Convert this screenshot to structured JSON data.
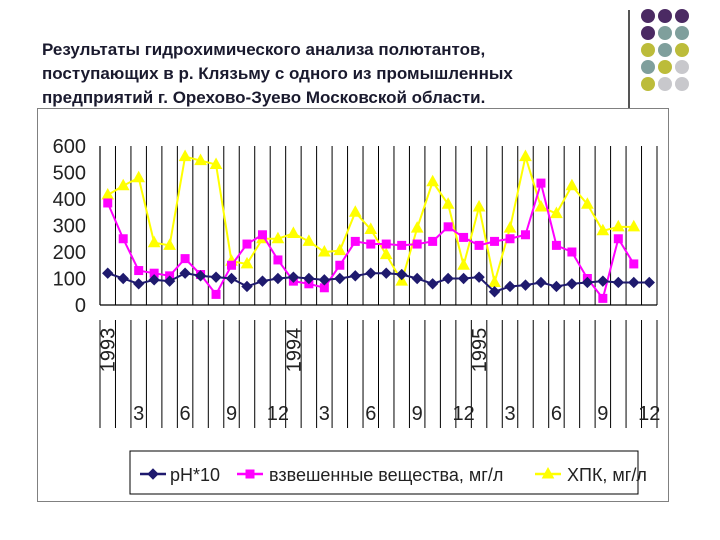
{
  "slide": {
    "title": "Результаты гидрохимического анализа полютантов,\nпоступающих в р. Клязьму с одного из промышленных\nпредприятий г. Орехово-Зуево Московской области."
  },
  "decor": {
    "dot_colors": {
      "purple": "#4b2a63",
      "teal": "#7f9f9c",
      "olive": "#bcbc3a",
      "gray": "#c8c8cc"
    }
  },
  "chart_data": {
    "type": "line",
    "ylim": [
      0,
      600
    ],
    "yticks": [
      "0",
      "100",
      "200",
      "300",
      "400",
      "500",
      "600"
    ],
    "grid": "vertical",
    "legend_position": "bottom",
    "x_count": 36,
    "year_labels": [
      {
        "label": "1993",
        "index": 0
      },
      {
        "label": "1994",
        "index": 12
      },
      {
        "label": "1995",
        "index": 24
      }
    ],
    "month_labels": [
      {
        "label": "3",
        "index": 2
      },
      {
        "label": "6",
        "index": 5
      },
      {
        "label": "9",
        "index": 8
      },
      {
        "label": "12",
        "index": 11
      },
      {
        "label": "3",
        "index": 14
      },
      {
        "label": "6",
        "index": 17
      },
      {
        "label": "9",
        "index": 20
      },
      {
        "label": "12",
        "index": 23
      },
      {
        "label": "3",
        "index": 26
      },
      {
        "label": "6",
        "index": 29
      },
      {
        "label": "9",
        "index": 32
      },
      {
        "label": "12",
        "index": 35
      }
    ],
    "series": [
      {
        "name": "pH*10",
        "color": "#1f1a6e",
        "marker": "diamond",
        "values": [
          120,
          100,
          80,
          95,
          90,
          120,
          110,
          105,
          100,
          70,
          90,
          100,
          105,
          100,
          95,
          100,
          110,
          120,
          120,
          115,
          100,
          80,
          100,
          100,
          105,
          50,
          70,
          75,
          85,
          70,
          80,
          85,
          90,
          85,
          85,
          85
        ]
      },
      {
        "name": "взвешенные вещества, мг/л",
        "color": "#ff00ff",
        "marker": "square",
        "values": [
          385,
          250,
          130,
          120,
          110,
          175,
          115,
          40,
          150,
          230,
          265,
          170,
          90,
          80,
          65,
          150,
          240,
          230,
          230,
          225,
          230,
          240,
          295,
          255,
          225,
          240,
          250,
          265,
          460,
          225,
          200,
          100,
          25,
          250,
          155,
          null
        ]
      },
      {
        "name": "ХПК, мг/л",
        "color": "#ffff00",
        "marker": "triangle",
        "values": [
          415,
          450,
          480,
          235,
          225,
          560,
          545,
          530,
          165,
          155,
          250,
          250,
          270,
          240,
          200,
          205,
          350,
          285,
          190,
          90,
          290,
          465,
          380,
          150,
          370,
          85,
          290,
          560,
          370,
          345,
          450,
          380,
          280,
          295,
          295,
          null
        ]
      }
    ]
  }
}
